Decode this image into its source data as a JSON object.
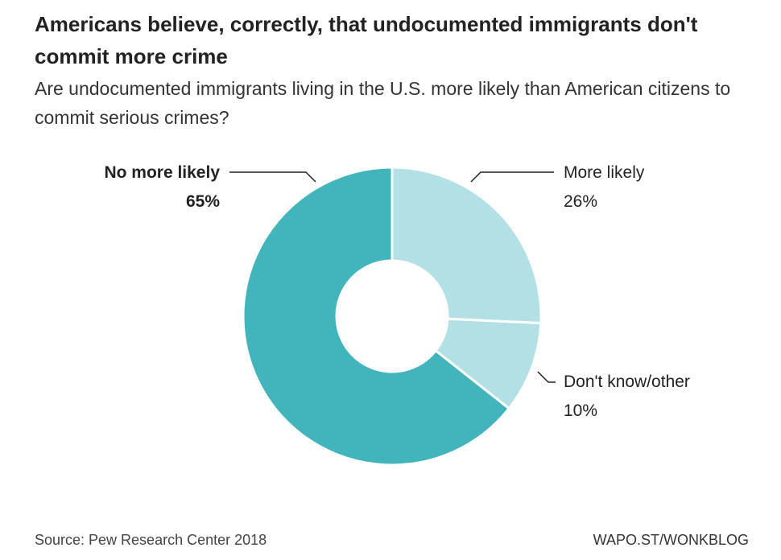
{
  "title": "Americans believe, correctly, that undocumented immigrants don't commit more crime",
  "subtitle": "Are undocumented immigrants living in the U.S. more likely than American citizens to commit serious crimes?",
  "source": "Source: Pew Research Center 2018",
  "credit": "WAPO.ST/WONKBLOG",
  "chart_data": {
    "type": "pie",
    "donut": true,
    "slices": [
      {
        "label": "More likely",
        "value": 26,
        "value_label": "26%",
        "color": "#b3e0e5"
      },
      {
        "label": "Don't know/other",
        "value": 10,
        "value_label": "10%",
        "color": "#b3e0e5"
      },
      {
        "label": "No more likely",
        "value": 65,
        "value_label": "65%",
        "color": "#41b5bb"
      }
    ]
  }
}
